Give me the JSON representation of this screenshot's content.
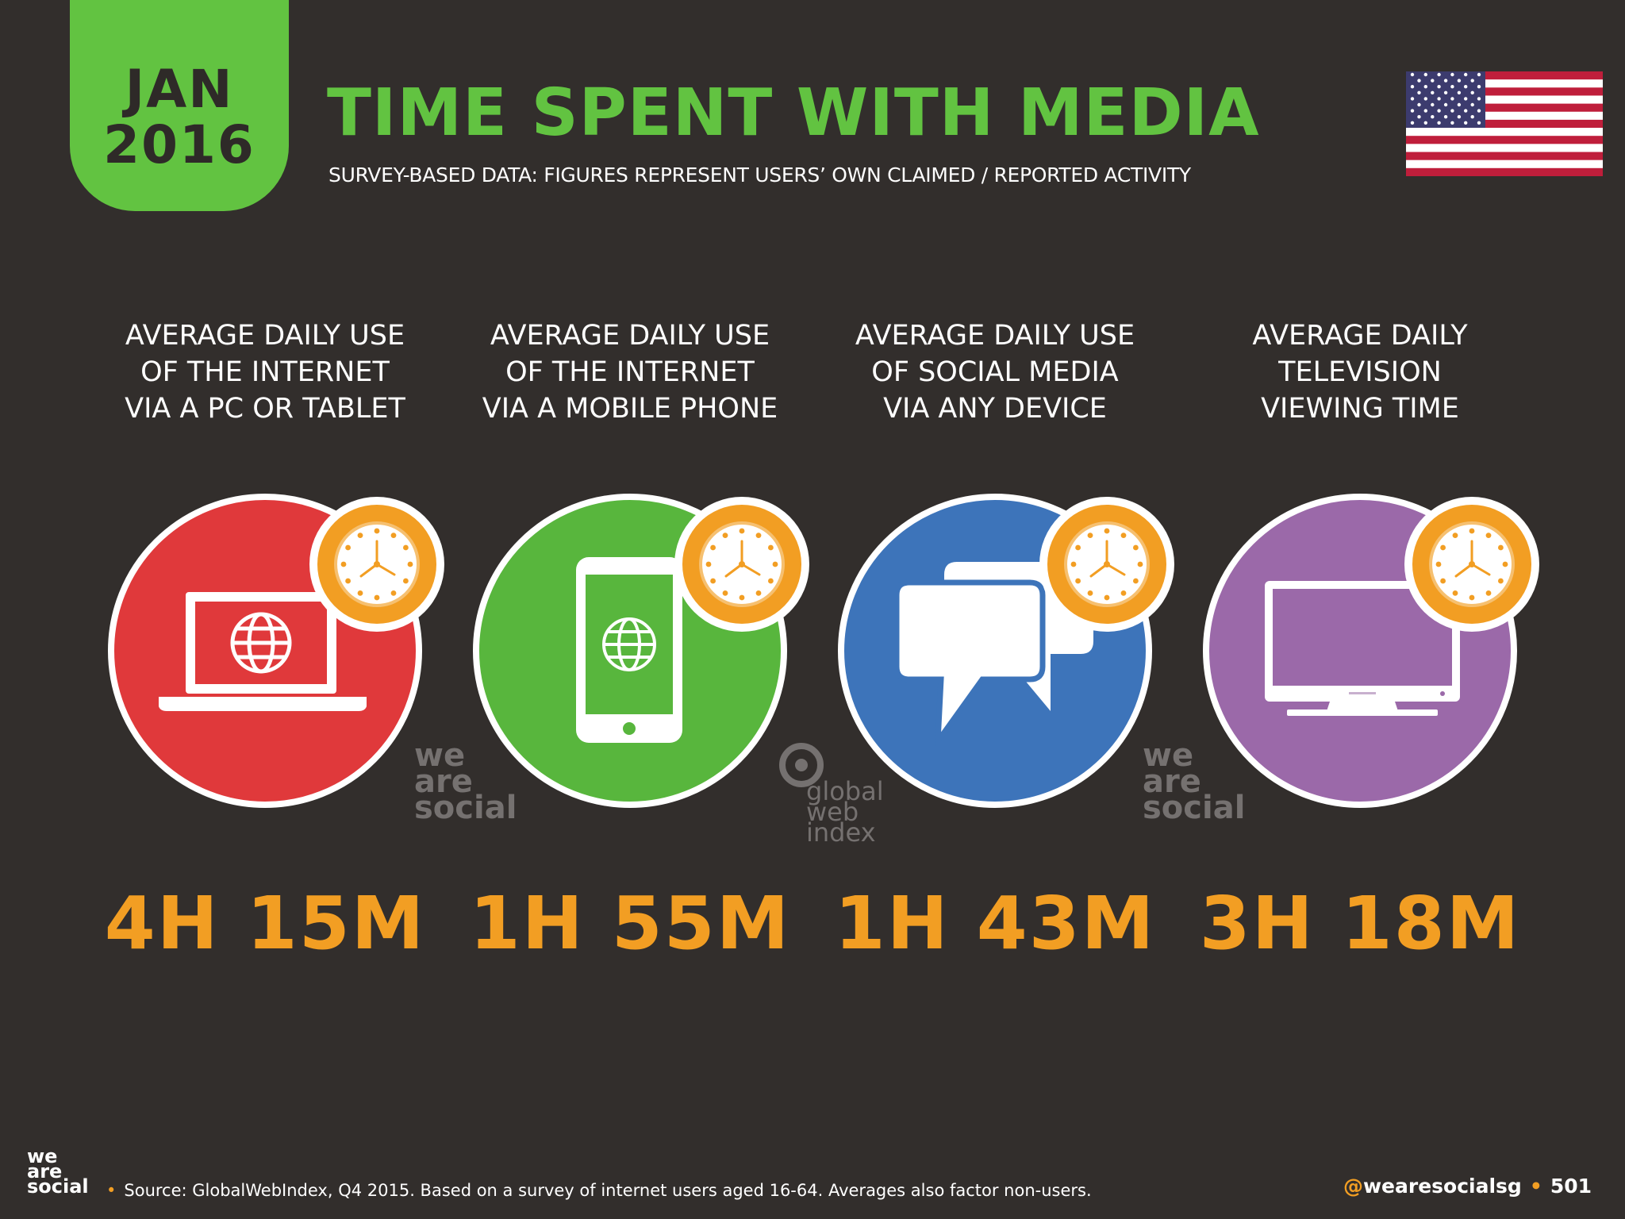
{
  "date": {
    "month": "JAN",
    "year": "2016"
  },
  "title": "TIME SPENT WITH MEDIA",
  "subtitle": "SURVEY-BASED DATA: FIGURES REPRESENT USERS’ OWN CLAIMED / REPORTED ACTIVITY",
  "flag": {
    "icon": "usa-flag-icon",
    "red": "#bf1e3b",
    "blue": "#3c3b6e"
  },
  "items": [
    {
      "label": "AVERAGE DAILY USE\nOF THE INTERNET\nVIA A PC OR TABLET",
      "value": "4H 15M",
      "color": "#e0393b",
      "icon": "laptop-globe-icon"
    },
    {
      "label": "AVERAGE DAILY USE\nOF THE INTERNET\nVIA A MOBILE PHONE",
      "value": "1H 55M",
      "color": "#58b63d",
      "icon": "mobile-phone-globe-icon"
    },
    {
      "label": "AVERAGE DAILY USE\nOF SOCIAL MEDIA\nVIA ANY DEVICE",
      "value": "1H 43M",
      "color": "#3d74ba",
      "icon": "speech-bubbles-icon"
    },
    {
      "label": "AVERAGE DAILY\nTELEVISION\nVIEWING TIME",
      "value": "3H 18M",
      "color": "#9b69a9",
      "icon": "television-icon"
    }
  ],
  "colors": {
    "accent_green": "#62c341",
    "accent_orange": "#f29e23",
    "background": "#322e2c"
  },
  "watermarks": {
    "we_are_social": "we are social",
    "global_web_index": "global web index"
  },
  "footer": {
    "brand": "we are social",
    "source": "Source: GlobalWebIndex, Q4 2015. Based on a survey of internet users aged 16-64. Averages also factor non-users.",
    "handle": "@wearesocialsg",
    "page_number": "501"
  }
}
